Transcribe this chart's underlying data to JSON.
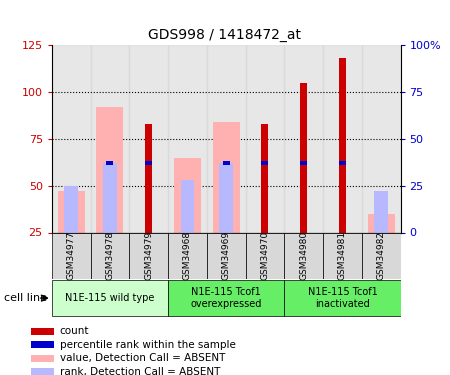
{
  "title": "GDS998 / 1418472_at",
  "samples": [
    "GSM34977",
    "GSM34978",
    "GSM34979",
    "GSM34968",
    "GSM34969",
    "GSM34970",
    "GSM34980",
    "GSM34981",
    "GSM34982"
  ],
  "count_values": [
    0,
    0,
    83,
    0,
    0,
    83,
    105,
    118,
    0
  ],
  "percentile_values": [
    0,
    62,
    62,
    0,
    62,
    62,
    62,
    62,
    0
  ],
  "absent_value_heights": [
    47,
    92,
    0,
    65,
    84,
    0,
    0,
    0,
    35
  ],
  "absent_rank_heights": [
    50,
    62,
    0,
    53,
    62,
    0,
    0,
    0,
    47
  ],
  "has_count": [
    false,
    false,
    true,
    false,
    false,
    true,
    true,
    true,
    false
  ],
  "has_percentile": [
    false,
    true,
    true,
    false,
    true,
    true,
    true,
    true,
    false
  ],
  "has_absent_value": [
    true,
    true,
    false,
    true,
    true,
    false,
    false,
    false,
    true
  ],
  "has_absent_rank": [
    true,
    true,
    false,
    true,
    true,
    false,
    false,
    false,
    true
  ],
  "ylim_left": [
    25,
    125
  ],
  "ylim_right": [
    0,
    100
  ],
  "yticks_left": [
    25,
    50,
    75,
    100,
    125
  ],
  "yticks_right": [
    0,
    25,
    50,
    75,
    100
  ],
  "ytick_labels_left": [
    "25",
    "50",
    "75",
    "100",
    "125"
  ],
  "ytick_labels_right": [
    "0",
    "25",
    "50",
    "75",
    "100%"
  ],
  "color_count": "#cc0000",
  "color_percentile": "#0000cc",
  "color_absent_value": "#ffb0b0",
  "color_absent_rank": "#b8b8ff",
  "group_configs": [
    {
      "start": 0,
      "end": 2,
      "label": "N1E-115 wild type",
      "color": "#ccffcc"
    },
    {
      "start": 3,
      "end": 5,
      "label": "N1E-115 Tcof1\noverexpressed",
      "color": "#66ee66"
    },
    {
      "start": 6,
      "end": 8,
      "label": "N1E-115 Tcof1\ninactivated",
      "color": "#66ee66"
    }
  ],
  "legend_items": [
    {
      "color": "#cc0000",
      "label": "count"
    },
    {
      "color": "#0000cc",
      "label": "percentile rank within the sample"
    },
    {
      "color": "#ffb0b0",
      "label": "value, Detection Call = ABSENT"
    },
    {
      "color": "#b8b8ff",
      "label": "rank, Detection Call = ABSENT"
    }
  ]
}
